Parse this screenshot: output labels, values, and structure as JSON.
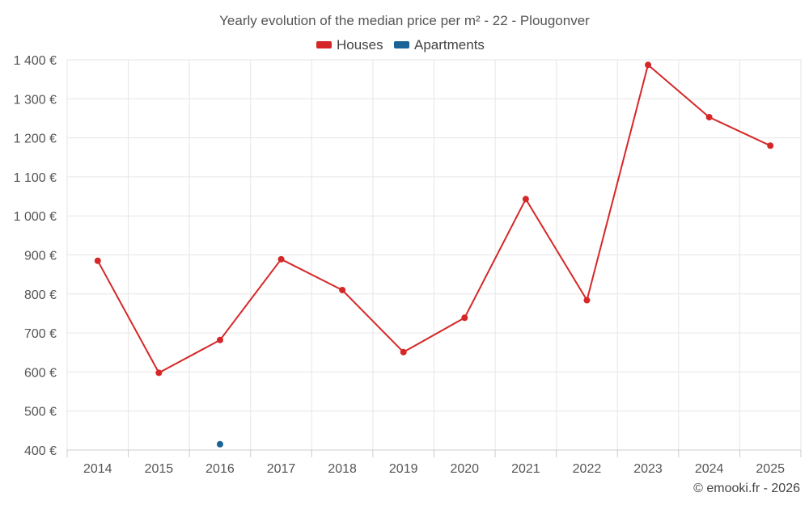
{
  "chart_data": {
    "type": "line",
    "title": "Yearly evolution of the median price per m² - 22 - Plougonver",
    "categories": [
      "2014",
      "2015",
      "2016",
      "2017",
      "2018",
      "2019",
      "2020",
      "2021",
      "2022",
      "2023",
      "2024",
      "2025"
    ],
    "y_ticks": [
      400,
      500,
      600,
      700,
      800,
      900,
      1000,
      1100,
      1200,
      1300,
      1400
    ],
    "y_tick_labels": [
      "400 €",
      "500 €",
      "600 €",
      "700 €",
      "800 €",
      "900 €",
      "1 000 €",
      "1 100 €",
      "1 200 €",
      "1 300 €",
      "1 400 €"
    ],
    "ylim": [
      400,
      1400
    ],
    "grid": true,
    "legend_position": "top-center",
    "series": [
      {
        "name": "Houses",
        "color": "#d62728",
        "values": [
          885,
          598,
          682,
          889,
          810,
          651,
          739,
          1043,
          784,
          1387,
          1253,
          1180
        ]
      },
      {
        "name": "Apartments",
        "color": "#1a6396",
        "values": [
          null,
          null,
          415,
          null,
          null,
          null,
          null,
          null,
          null,
          null,
          null,
          null
        ]
      }
    ],
    "credit": "© emooki.fr - 2026"
  }
}
